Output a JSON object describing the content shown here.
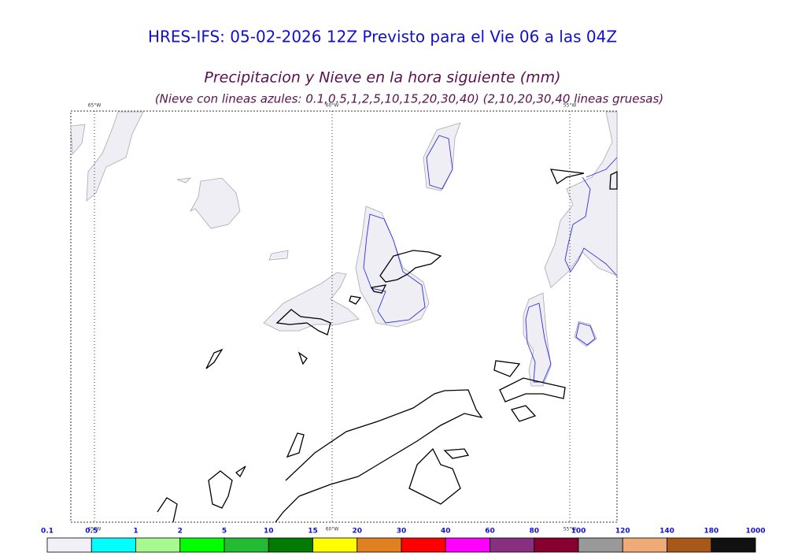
{
  "header": {
    "title": "HRES-IFS: 05-02-2026 12Z Previsto para el Vie 06 a las 04Z",
    "subtitle": "Precipitacion y Nieve en la hora siguiente (mm)",
    "note": "(Nieve con lineas azules: 0.1,0.5,1,2,5,10,15,20,30,40)  (2,10,20,30,40 lineas gruesas)"
  },
  "map": {
    "meridians": [
      {
        "top": "65°W",
        "bottom": "65°W"
      },
      {
        "top": "60°W",
        "bottom": "60°W"
      },
      {
        "top": "55°W",
        "bottom": "55°W"
      }
    ]
  },
  "colorbar": {
    "ticks": [
      0.1,
      0.5,
      1,
      2,
      5,
      10,
      15,
      20,
      30,
      40,
      60,
      80,
      100,
      120,
      140,
      180,
      1000
    ],
    "colors": [
      "#f0f0f6",
      "#00ffff",
      "#a8f890",
      "#00ff00",
      "#22bb33",
      "#007a00",
      "#ffff00",
      "#e08020",
      "#ff0000",
      "#ff00ff",
      "#883080",
      "#880030",
      "#999999",
      "#eeaa77",
      "#a85818",
      "#111111"
    ]
  }
}
